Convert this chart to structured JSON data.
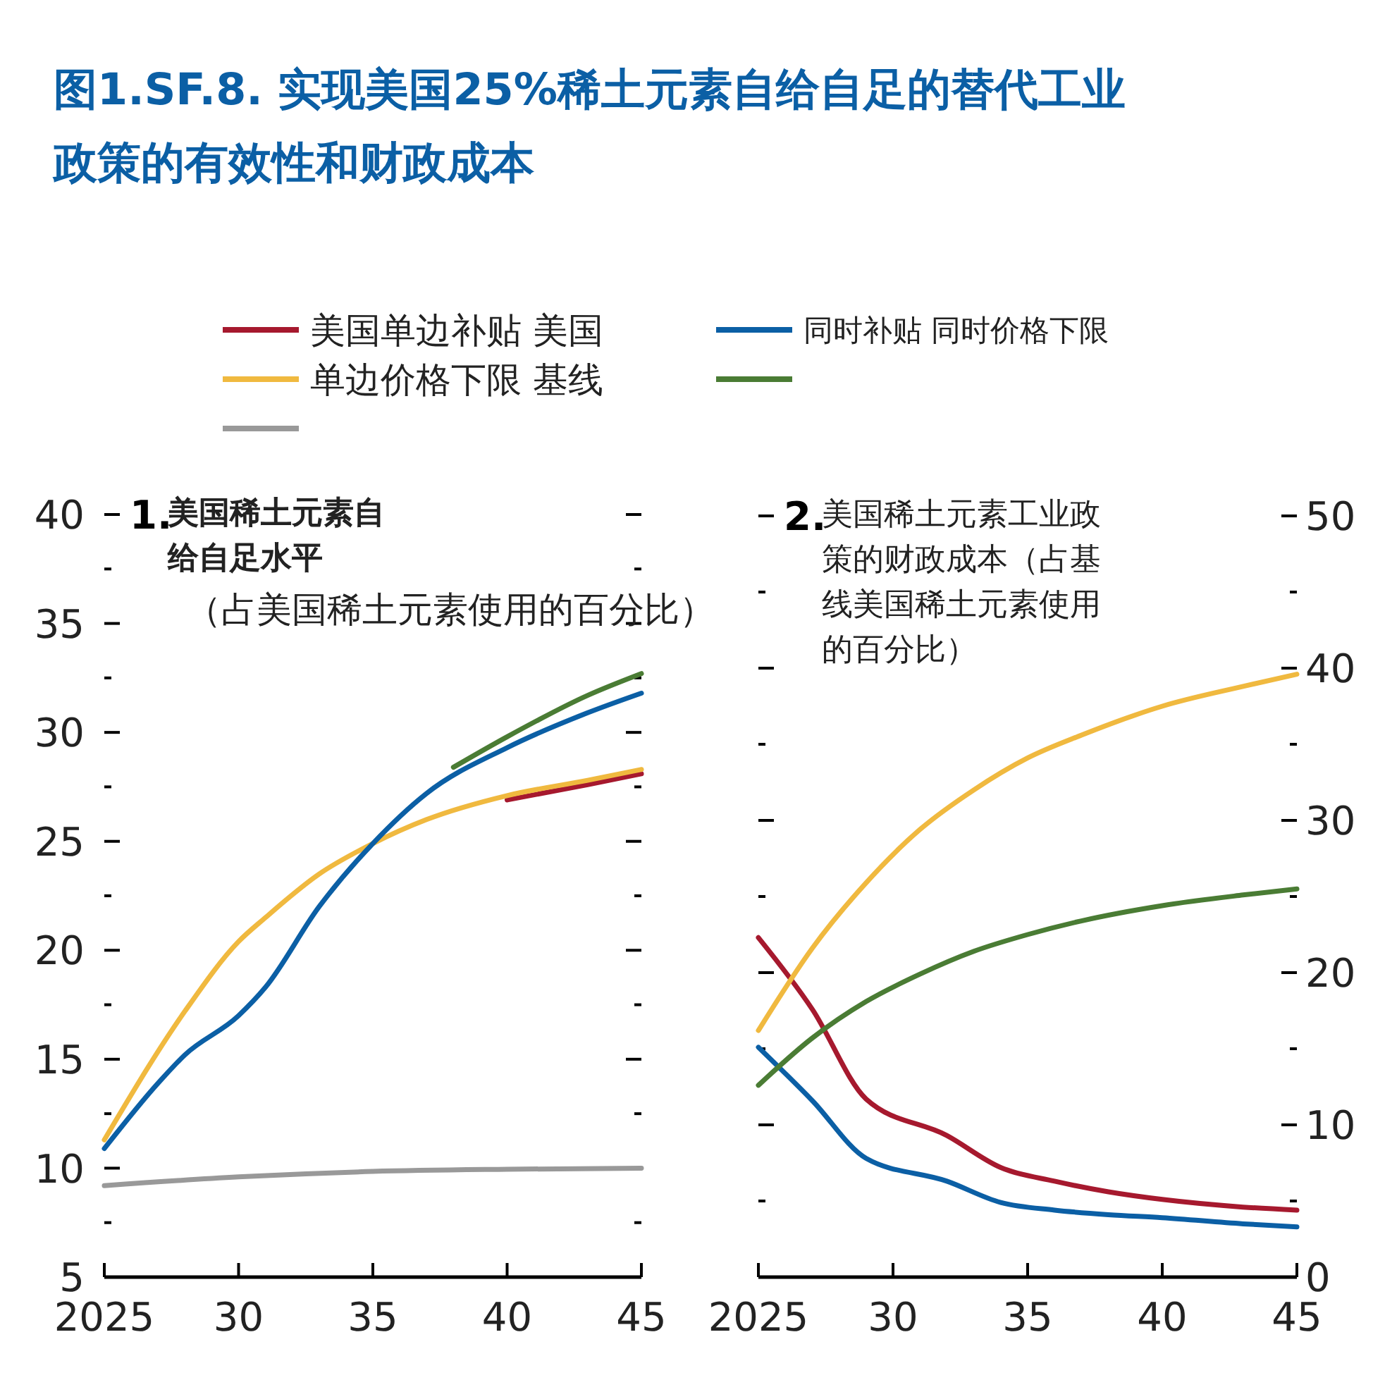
{
  "chart_data": [
    {
      "type": "line",
      "title": "图1.SF.8. 实现美国25%稀土元素自给自足的替代工业政策的有效性和财政成本",
      "subtitle": "1.美国稀土元素自给自足水平",
      "annotations": [
        "（占美国稀土元素使用的百分比）"
      ],
      "legend": "top",
      "xlim": [
        2025,
        2045
      ],
      "xticks": [
        {
          "value": 2025,
          "label": "2025"
        },
        {
          "value": 2030,
          "label": "30"
        },
        {
          "value": 2035,
          "label": "35"
        },
        {
          "value": 2040,
          "label": "40"
        },
        {
          "value": 2045,
          "label": "45"
        }
      ],
      "ylim": [
        5,
        40
      ],
      "yticks": [
        5,
        {
          "value": 7.5,
          "label": null
        },
        10,
        {
          "value": 12.5,
          "label": null
        },
        15,
        {
          "value": 17.5,
          "label": null
        },
        20,
        {
          "value": 22.5,
          "label": null
        },
        25,
        {
          "value": 27.5,
          "label": null
        },
        30,
        {
          "value": 32.5,
          "label": null
        },
        35,
        {
          "value": 37.5,
          "label": null
        },
        40
      ],
      "series": [
        {
          "name": "美国单边补贴 美国",
          "color": "#a6192e",
          "x": [
            2040,
            2043,
            2045
          ],
          "values": [
            26.9,
            27.6,
            28.1
          ]
        },
        {
          "name": "单边价格下限 基线",
          "color": "#f0b93f",
          "x": [
            2025,
            2028,
            2030,
            2031,
            2033,
            2035,
            2037,
            2040,
            2043,
            2045
          ],
          "values": [
            11.3,
            17.2,
            20.4,
            21.5,
            23.5,
            24.9,
            26.0,
            27.1,
            27.8,
            28.3
          ]
        },
        {
          "color": "#999999",
          "x": [
            2025,
            2030,
            2035,
            2040,
            2045
          ],
          "values": [
            9.2,
            9.6,
            9.85,
            9.95,
            10.0
          ]
        },
        {
          "name": "同时补贴 同时价格下限",
          "color": "#0b5fa5",
          "x": [
            2025,
            2027,
            2028,
            2030,
            2031,
            2033,
            2035,
            2037,
            2040,
            2043,
            2045
          ],
          "values": [
            10.9,
            13.9,
            15.2,
            17.0,
            18.3,
            22.0,
            24.9,
            27.2,
            29.3,
            30.9,
            31.8
          ]
        },
        {
          "color": "#4a7c34",
          "x": [
            2038,
            2040,
            2043,
            2045
          ],
          "values": [
            28.4,
            29.8,
            31.7,
            32.7
          ]
        }
      ]
    },
    {
      "type": "line",
      "title": "2.美国稀土元素工业政策的财政成本（占基线美国稀土元素使用的百分比）",
      "xlim": [
        2025,
        2045
      ],
      "xticks": [
        {
          "value": 2025,
          "label": "2025"
        },
        {
          "value": 2030,
          "label": "30"
        },
        {
          "value": 2035,
          "label": "35"
        },
        {
          "value": 2040,
          "label": "40"
        },
        {
          "value": 2045,
          "label": "45"
        }
      ],
      "y2lim": [
        0,
        50
      ],
      "y2ticks": [
        0,
        {
          "value": 5,
          "label": null
        },
        10,
        {
          "value": 15,
          "label": null
        },
        20,
        {
          "value": 25,
          "label": null
        },
        30,
        {
          "value": 35,
          "label": null
        },
        40,
        {
          "value": 45,
          "label": null
        },
        50
      ],
      "series": [
        {
          "color": "#a6192e",
          "axis": "y2",
          "x": [
            2025,
            2027,
            2029,
            2032,
            2034,
            2036,
            2038,
            2040,
            2043,
            2045
          ],
          "values": [
            22.3,
            17.6,
            11.7,
            9.3,
            7.2,
            6.3,
            5.6,
            5.1,
            4.6,
            4.4
          ]
        },
        {
          "color": "#0b5fa5",
          "axis": "y2",
          "x": [
            2025,
            2027,
            2029,
            2032,
            2034,
            2036,
            2038,
            2040,
            2043,
            2045
          ],
          "values": [
            15.1,
            11.6,
            7.8,
            6.3,
            4.9,
            4.4,
            4.1,
            3.9,
            3.5,
            3.3
          ]
        },
        {
          "color": "#f0b93f",
          "axis": "y2",
          "x": [
            2025,
            2027,
            2029,
            2031,
            2033,
            2035,
            2037,
            2040,
            2043,
            2045
          ],
          "values": [
            16.2,
            21.6,
            25.9,
            29.4,
            32.0,
            34.1,
            35.6,
            37.5,
            38.8,
            39.6
          ]
        },
        {
          "color": "#4a7c34",
          "axis": "y2",
          "x": [
            2025,
            2027,
            2029,
            2031,
            2033,
            2035,
            2037,
            2040,
            2043,
            2045
          ],
          "values": [
            12.6,
            15.7,
            18.1,
            19.9,
            21.4,
            22.5,
            23.4,
            24.4,
            25.1,
            25.5
          ]
        }
      ]
    }
  ]
}
